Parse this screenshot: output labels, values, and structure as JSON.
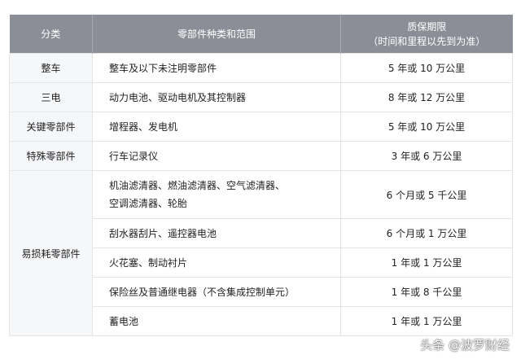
{
  "header": {
    "category": "分类",
    "parts": "零部件种类和范围",
    "period_line1": "质保期限",
    "period_line2": "（时间和里程以先到为准）"
  },
  "rows": [
    {
      "category": "整车",
      "parts": "整车及以下未注明零部件",
      "period": "5 年或 10 万公里"
    },
    {
      "category": "三电",
      "parts": "动力电池、驱动电机及其控制器",
      "period": "8 年或 12 万公里"
    },
    {
      "category": "关键零部件",
      "parts": "增程器、发电机",
      "period": "5 年或 10 万公里"
    },
    {
      "category": "特殊零部件",
      "parts": "行车记录仪",
      "period": "3 年或 6 万公里"
    }
  ],
  "consumables": {
    "category": "易损耗零部件",
    "items": [
      {
        "parts": "机油滤清器、燃油滤清器、空气滤清器、空调滤清器、轮胎",
        "period": "6 个月或 5 千公里"
      },
      {
        "parts": "刮水器刮片、遥控器电池",
        "period": "6 个月或 1 万公里"
      },
      {
        "parts": "火花塞、制动衬片",
        "period": "1 年或 1 万公里"
      },
      {
        "parts": "保险丝及普通继电器（不含集成控制单元）",
        "period": "1 年或 8 千公里"
      },
      {
        "parts": "蓄电池",
        "period": "1 年或 1 万公里"
      }
    ]
  },
  "watermark": "头条 @波罗财经"
}
